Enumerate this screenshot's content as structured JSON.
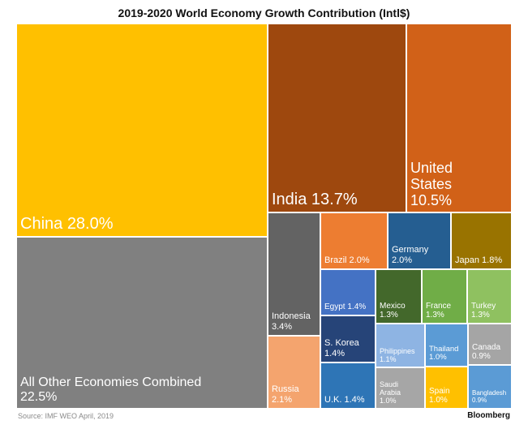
{
  "chart_data": {
    "type": "treemap",
    "title": "2019-2020 World Economy Growth Contribution (Intl$)",
    "source": "Source: IMF WEO April, 2019",
    "brand": "Bloomberg",
    "items": [
      {
        "label": "China 28.0%",
        "value": 28.0,
        "color": "#FFC000"
      },
      {
        "label": "All Other Economies Combined\n22.5%",
        "value": 22.5,
        "color": "#808080"
      },
      {
        "label": "India 13.7%",
        "value": 13.7,
        "color": "#9E480E"
      },
      {
        "label": "United\nStates\n10.5%",
        "value": 10.5,
        "color": "#D16118"
      },
      {
        "label": "Indonesia\n3.4%",
        "value": 3.4,
        "color": "#636363"
      },
      {
        "label": "Russia\n2.1%",
        "value": 2.1,
        "color": "#F4A46E"
      },
      {
        "label": "Brazil 2.0%",
        "value": 2.0,
        "color": "#ED7D31"
      },
      {
        "label": "Germany\n2.0%",
        "value": 2.0,
        "color": "#255E91"
      },
      {
        "label": "Japan 1.8%",
        "value": 1.8,
        "color": "#997300"
      },
      {
        "label": "Egypt 1.4%",
        "value": 1.4,
        "color": "#4472C4"
      },
      {
        "label": "S. Korea\n1.4%",
        "value": 1.4,
        "color": "#264478"
      },
      {
        "label": "U.K. 1.4%",
        "value": 1.4,
        "color": "#2E75B6"
      },
      {
        "label": "Mexico\n1.3%",
        "value": 1.3,
        "color": "#43682B"
      },
      {
        "label": "France\n1.3%",
        "value": 1.3,
        "color": "#70AD47"
      },
      {
        "label": "Turkey\n1.3%",
        "value": 1.3,
        "color": "#8FC160"
      },
      {
        "label": "Philippines\n1.1%",
        "value": 1.1,
        "color": "#8EB4E3"
      },
      {
        "label": "Saudi\nArabia\n1.0%",
        "value": 1.0,
        "color": "#A6A6A6"
      },
      {
        "label": "Thailand\n1.0%",
        "value": 1.0,
        "color": "#5B9BD5"
      },
      {
        "label": "Spain\n1.0%",
        "value": 1.0,
        "color": "#FFC000"
      },
      {
        "label": "Canada\n0.9%",
        "value": 0.9,
        "color": "#A5A5A5"
      },
      {
        "label": "Bangladesh\n0.9%",
        "value": 0.9,
        "color": "#5B9BD5"
      }
    ]
  }
}
